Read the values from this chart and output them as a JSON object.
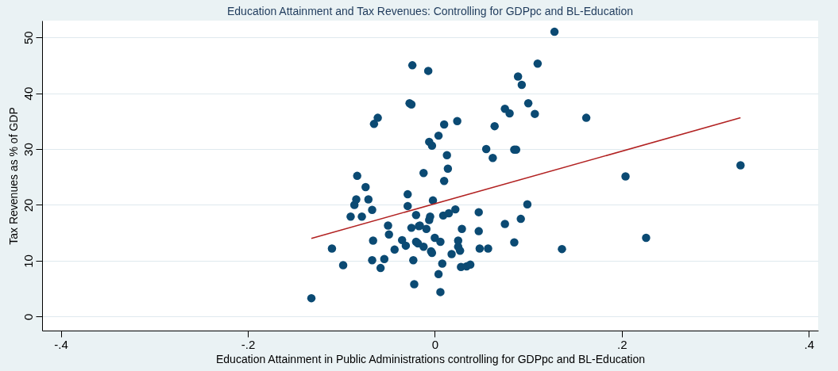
{
  "chart_data": {
    "type": "scatter",
    "title": "Education Attainment and Tax Revenues: Controlling for GDPpc and BL-Education",
    "xlabel": "Education Attainment in Public Administrations controlling for GDPpc and BL-Education",
    "ylabel": "Tax Revenues as % of GDP",
    "xlim": [
      -0.42,
      0.41
    ],
    "ylim": [
      -2.5,
      53
    ],
    "xticks": [
      {
        "value": -0.4,
        "label": "-.4"
      },
      {
        "value": -0.2,
        "label": "-.2"
      },
      {
        "value": 0,
        "label": "0"
      },
      {
        "value": 0.2,
        "label": ".2"
      },
      {
        "value": 0.4,
        "label": ".4"
      }
    ],
    "yticks": [
      0,
      10,
      20,
      30,
      40,
      50
    ],
    "grid": "y",
    "line_style": "solid",
    "series": [
      {
        "type": "scatter",
        "marker": "circle",
        "color": "#0b4a73",
        "x": [
          -0.132,
          -0.11,
          -0.098,
          -0.09,
          -0.086,
          -0.083,
          -0.084,
          -0.078,
          -0.074,
          -0.071,
          -0.067,
          -0.066,
          -0.067,
          -0.065,
          -0.061,
          -0.058,
          -0.054,
          -0.05,
          -0.049,
          -0.043,
          -0.035,
          -0.031,
          -0.029,
          -0.029,
          -0.027,
          -0.025,
          -0.024,
          -0.025,
          -0.023,
          -0.022,
          -0.02,
          -0.02,
          -0.018,
          -0.017,
          -0.016,
          -0.012,
          -0.012,
          -0.007,
          -0.009,
          -0.006,
          -0.005,
          -0.006,
          -0.003,
          -0.002,
          -0.004,
          -0.003,
          0.0,
          0.004,
          0.004,
          0.006,
          0.008,
          0.01,
          0.01,
          0.013,
          0.014,
          0.009,
          0.006,
          0.015,
          0.018,
          0.022,
          0.024,
          0.025,
          0.025,
          0.027,
          0.029,
          0.028,
          0.034,
          0.038,
          0.047,
          0.047,
          0.048,
          0.055,
          0.057,
          0.062,
          0.064,
          0.075,
          0.075,
          0.08,
          0.085,
          0.087,
          0.085,
          0.089,
          0.093,
          0.092,
          0.099,
          0.1,
          0.107,
          0.11,
          0.128,
          0.136,
          0.162,
          0.204,
          0.226,
          0.327
        ],
        "values": [
          3.3,
          12.2,
          9.2,
          17.9,
          20.0,
          25.2,
          21.0,
          17.9,
          23.2,
          21.0,
          19.1,
          13.6,
          10.1,
          34.5,
          35.6,
          8.7,
          10.3,
          16.3,
          14.7,
          12.0,
          13.7,
          12.7,
          21.9,
          19.8,
          38.2,
          38.0,
          45.0,
          15.9,
          10.1,
          5.8,
          18.2,
          13.4,
          13.1,
          16.2,
          16.3,
          25.7,
          12.5,
          44.0,
          15.7,
          17.3,
          17.9,
          31.3,
          30.6,
          20.8,
          11.7,
          11.4,
          14.1,
          32.4,
          7.6,
          4.4,
          9.5,
          34.4,
          24.3,
          28.9,
          26.5,
          18.1,
          13.4,
          18.5,
          11.2,
          19.2,
          35.0,
          13.6,
          12.5,
          11.8,
          15.7,
          8.9,
          9.0,
          9.3,
          18.7,
          15.3,
          12.2,
          30.0,
          12.2,
          28.4,
          34.1,
          16.6,
          37.2,
          36.4,
          29.9,
          29.9,
          13.3,
          43.0,
          41.5,
          17.5,
          20.1,
          38.2,
          36.3,
          45.3,
          51.0,
          12.1,
          35.6,
          25.1,
          14.1,
          27.1
        ]
      },
      {
        "type": "line",
        "marker": "none",
        "color": "#b22222",
        "x": [
          -0.132,
          0.327
        ],
        "values": [
          14.0,
          35.6
        ]
      }
    ]
  }
}
